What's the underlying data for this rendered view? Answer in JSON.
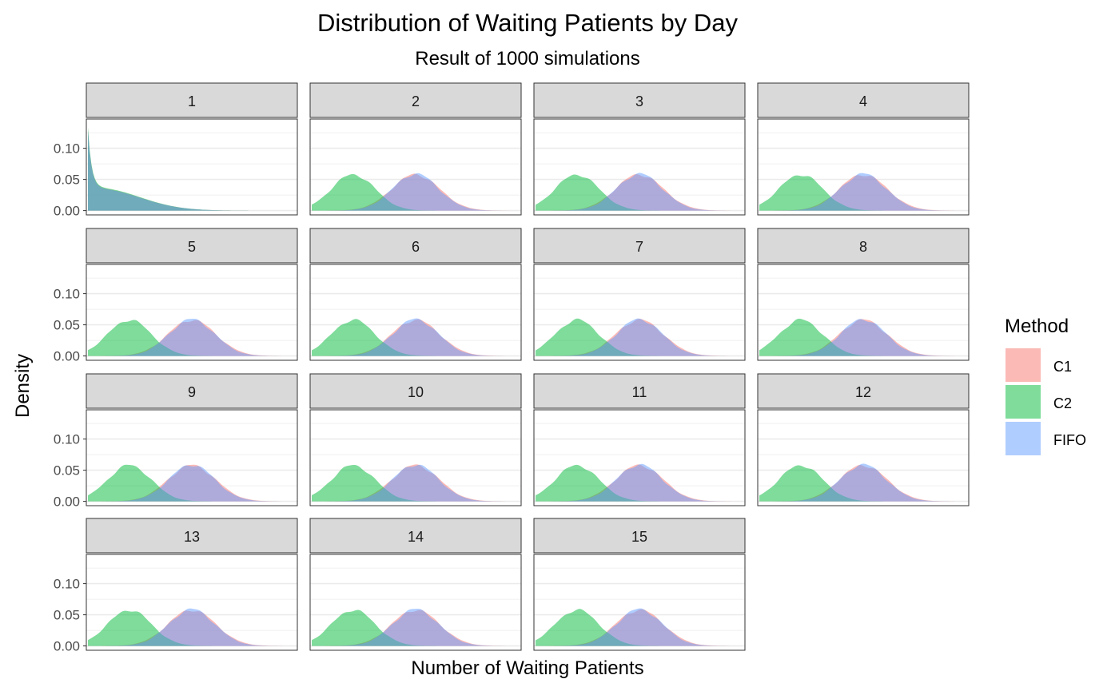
{
  "chart_data": {
    "type": "density",
    "title": "Distribution of Waiting Patients by Day",
    "subtitle": "Result of 1000 simulations",
    "xlabel": "Number of Waiting Patients",
    "ylabel": "Density",
    "ylim": [
      0,
      0.14
    ],
    "yticks": [
      0.0,
      0.05,
      0.1
    ],
    "ytick_labels": [
      "0.00",
      "0.05",
      "0.10"
    ],
    "facet_labels": [
      "1",
      "2",
      "3",
      "4",
      "5",
      "6",
      "7",
      "8",
      "9",
      "10",
      "11",
      "12",
      "13",
      "14",
      "15"
    ],
    "facet_columns": 4,
    "legend": {
      "title": "Method",
      "position": "right",
      "entries": [
        {
          "name": "C1",
          "color": "#F8766D"
        },
        {
          "name": "C2",
          "color": "#00BA38"
        },
        {
          "name": "FIFO",
          "color": "#619CFF"
        }
      ]
    },
    "fill_alpha": 0.5,
    "grid": true,
    "x_axis_ticks_shown": false,
    "series_shape": {
      "x_domain": [
        0,
        1
      ],
      "day1": {
        "peak_density": 0.13,
        "shoulder_density": 0.035
      },
      "later_days": {
        "C2_peak_x": 0.2,
        "C2_peak_density": 0.058,
        "C1_peak_x": 0.5,
        "C1_peak_density": 0.058,
        "FIFO_peak_x": 0.5,
        "FIFO_peak_density": 0.059
      }
    }
  }
}
